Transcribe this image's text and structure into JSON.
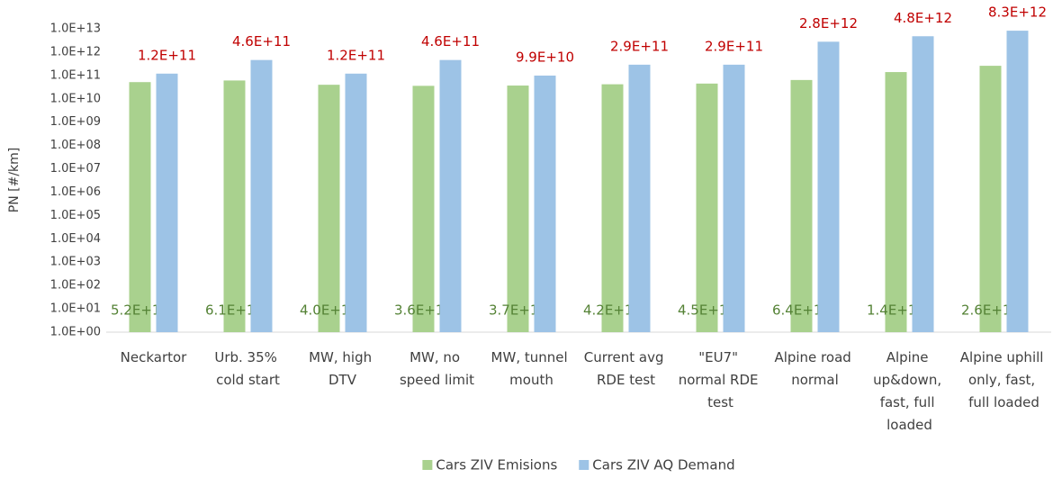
{
  "chart_data": {
    "type": "bar",
    "y_label": "PN [#/km]",
    "log_scale": true,
    "grid": false,
    "legend": "bottom",
    "ylim": [
      1,
      10000000000000
    ],
    "yticks": [
      {
        "value": 1,
        "label": "1.0E+00"
      },
      {
        "value": 10,
        "label": "1.0E+01"
      },
      {
        "value": 100,
        "label": "1.0E+02"
      },
      {
        "value": 1000,
        "label": "1.0E+03"
      },
      {
        "value": 10000,
        "label": "1.0E+04"
      },
      {
        "value": 100000,
        "label": "1.0E+05"
      },
      {
        "value": 1000000,
        "label": "1.0E+06"
      },
      {
        "value": 10000000,
        "label": "1.0E+07"
      },
      {
        "value": 100000000,
        "label": "1.0E+08"
      },
      {
        "value": 1000000000,
        "label": "1.0E+09"
      },
      {
        "value": 10000000000,
        "label": "1.0E+10"
      },
      {
        "value": 100000000000,
        "label": "1.0E+11"
      },
      {
        "value": 1000000000000,
        "label": "1.0E+12"
      },
      {
        "value": 10000000000000,
        "label": "1.0E+13"
      }
    ],
    "categories": [
      "Neckartor",
      "Urb. 35% cold start",
      "MW, high DTV",
      "MW, no speed limit",
      "MW, tunnel mouth",
      "Current avg RDE test",
      "\"EU7\" normal RDE test",
      "Alpine road normal",
      "Alpine up&down, fast, full loaded",
      "Alpine uphill only, fast, full loaded"
    ],
    "series": [
      {
        "name": "Cars ZIV Emisions",
        "color": "#a9d18e",
        "label_color": "#548235",
        "label_position": "bottom",
        "values": [
          52000000000,
          61000000000,
          40000000000,
          36000000000,
          37000000000,
          42000000000,
          45000000000,
          64000000000,
          140000000000,
          260000000000
        ],
        "value_labels": [
          "5.2E+10",
          "6.1E+10",
          "4.0E+10",
          "3.6E+10",
          "3.7E+10",
          "4.2E+10",
          "4.5E+10",
          "6.4E+10",
          "1.4E+11",
          "2.6E+11"
        ]
      },
      {
        "name": "Cars ZIV AQ Demand",
        "color": "#9dc3e6",
        "label_color": "#c00000",
        "label_position": "top",
        "values": [
          120000000000,
          460000000000,
          120000000000,
          460000000000,
          99000000000,
          290000000000,
          290000000000,
          2800000000000,
          4800000000000,
          8300000000000
        ],
        "value_labels": [
          "1.2E+11",
          "4.6E+11",
          "1.2E+11",
          "4.6E+11",
          "9.9E+10",
          "2.9E+11",
          "2.9E+11",
          "2.8E+12",
          "4.8E+12",
          "8.3E+12"
        ]
      }
    ]
  }
}
